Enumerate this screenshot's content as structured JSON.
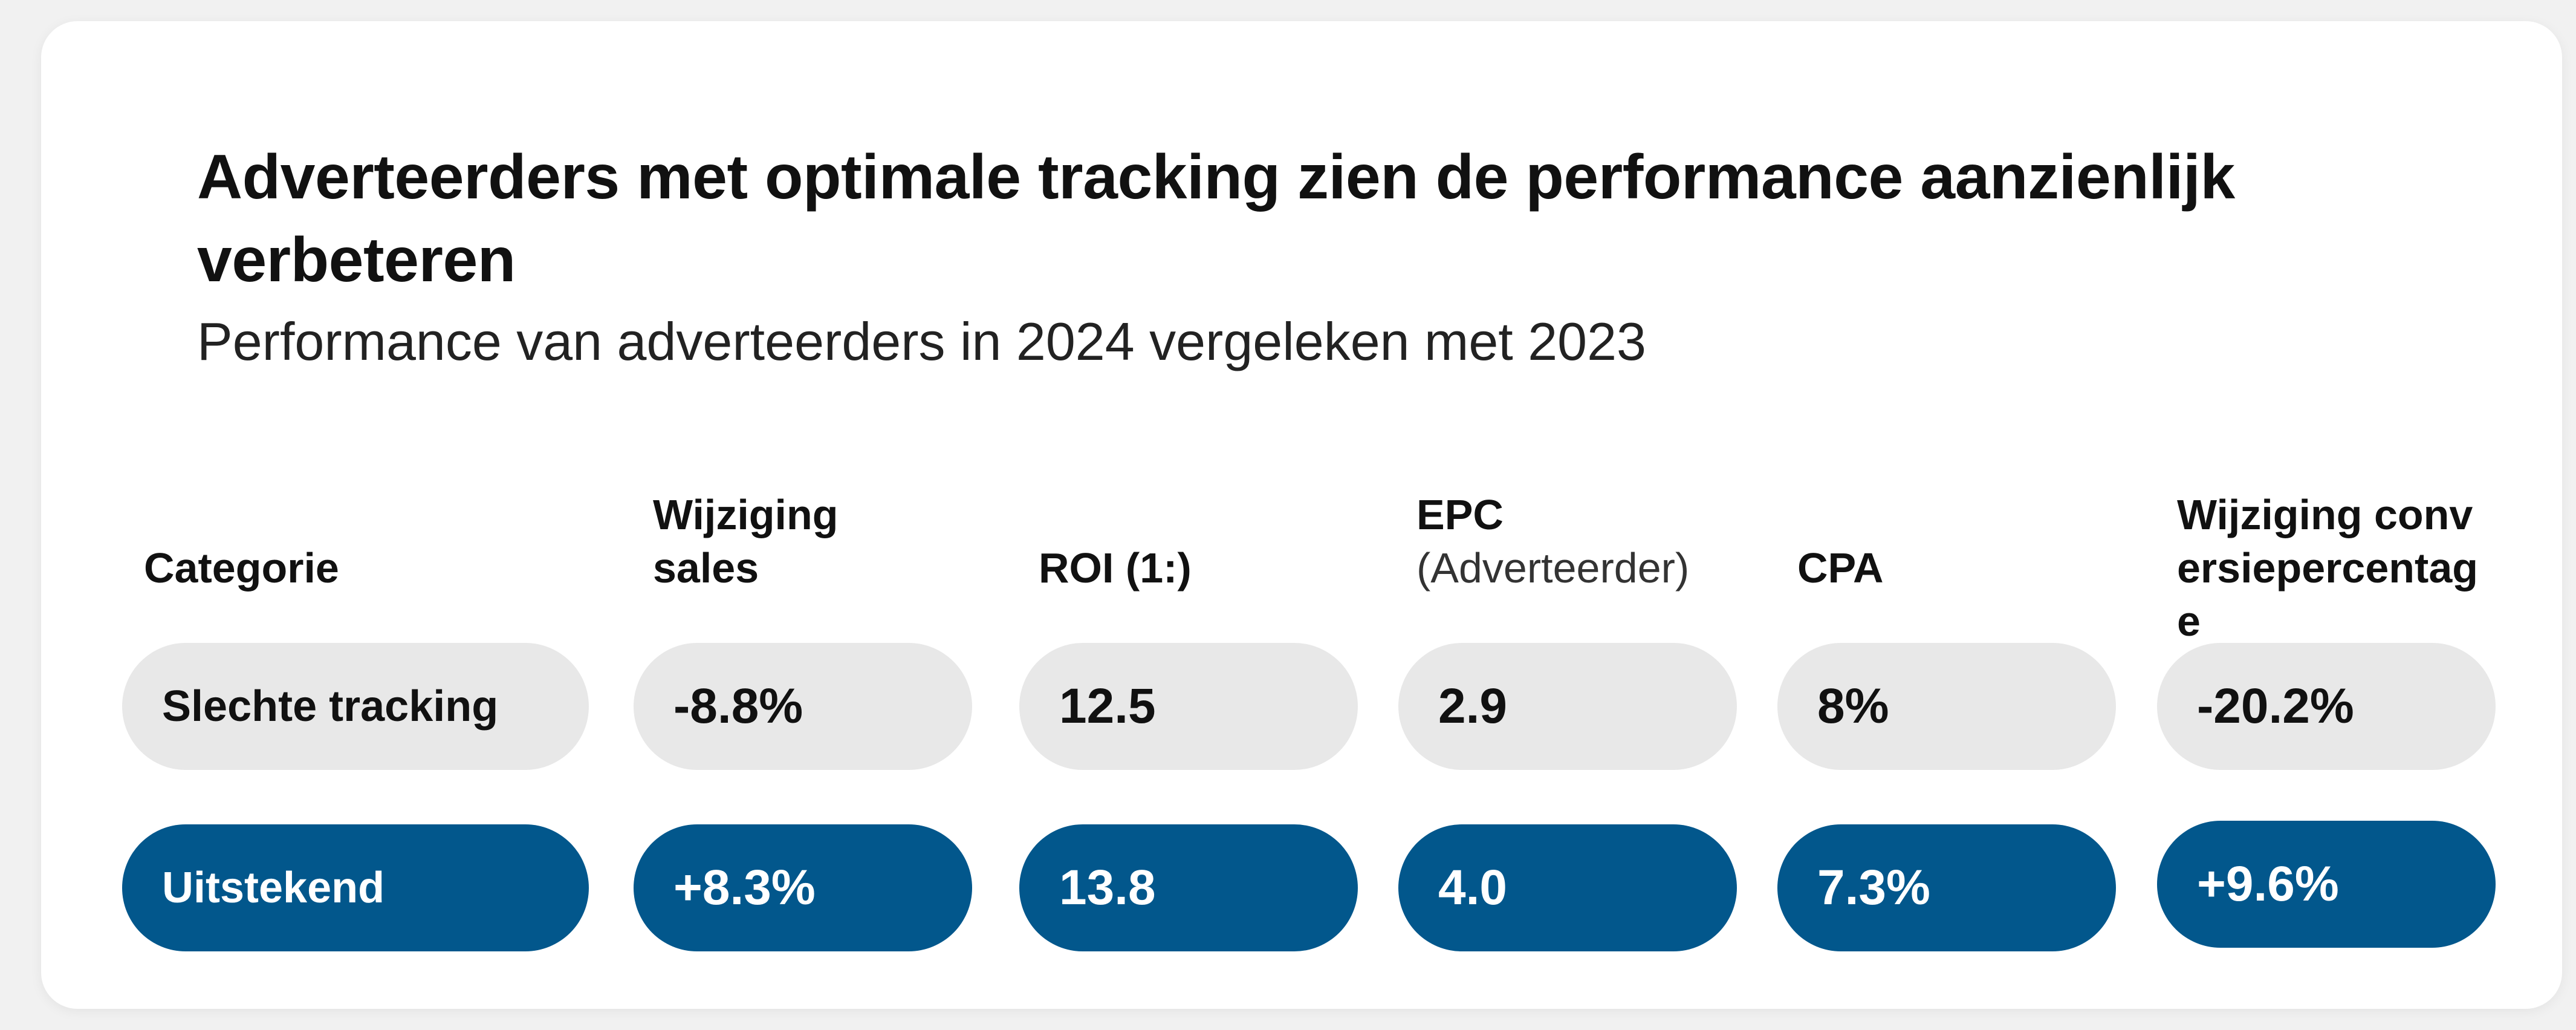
{
  "chart_data": {
    "type": "table",
    "title": "Adverteerders met optimale tracking zien de performance aanzienlijk verbeteren",
    "subtitle": "Performance van adverteerders in 2024 vergeleken met 2023",
    "headers": [
      {
        "bold": "Categorie",
        "light": ""
      },
      {
        "bold": "Wijziging sales",
        "light": ""
      },
      {
        "bold": "ROI (1:)",
        "light": ""
      },
      {
        "bold": "EPC",
        "light": "(Adverteerder)"
      },
      {
        "bold": "CPA",
        "light": ""
      },
      {
        "bold": "Wijziging conversiepercentage",
        "light": ""
      }
    ],
    "rows": [
      {
        "category": "Slechte tracking",
        "values": [
          "-8.8%",
          "12.5",
          "2.9",
          "8%",
          "-20.2%"
        ]
      },
      {
        "category": "Uitstekend",
        "values": [
          "+8.3%",
          "13.8",
          "4.0",
          "7.3%",
          "+9.6%"
        ]
      }
    ]
  },
  "colors": {
    "accent": "#02578c",
    "neutral_pill": "#e8e8e8",
    "card": "#ffffff",
    "background": "#f1f1f1"
  }
}
